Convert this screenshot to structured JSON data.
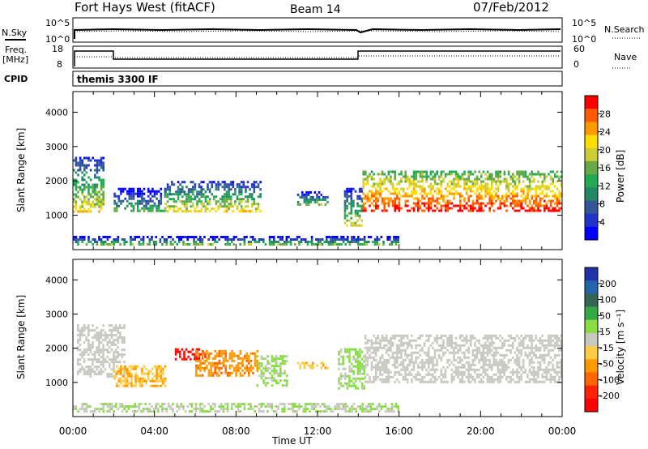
{
  "header": {
    "site": "Fort Hays West (fitACF)",
    "beam": "Beam 14",
    "date": "07/Feb/2012"
  },
  "strips": {
    "nsky_label": "N.Sky",
    "nsearch_label": "N.Search",
    "freq_label_line1": "Freq.",
    "freq_label_line2": "[MHz]",
    "nave_label": "Nave",
    "cpid_label": "CPID",
    "noise_ticks": [
      "10^5",
      "10^0"
    ],
    "freq_ticks": [
      "18",
      "8"
    ],
    "nave_ticks": [
      "60",
      "0"
    ],
    "program": "themis 3300 IF"
  },
  "axes": {
    "ylabel": "Slant Range [km]",
    "xlabel": "Time UT",
    "y_ticks": [
      "4000",
      "3000",
      "2000",
      "1000"
    ],
    "x_ticks": [
      "00:00",
      "04:00",
      "08:00",
      "12:00",
      "16:00",
      "20:00",
      "00:00"
    ]
  },
  "power_scale": {
    "label": "Power [dB]",
    "ticks": [
      "28",
      "24",
      "20",
      "16",
      "12",
      "8",
      "4"
    ],
    "colors": [
      "#ff0000",
      "#ff5a00",
      "#ff9900",
      "#ffdd00",
      "#cccc33",
      "#66aa44",
      "#22aa55",
      "#228866",
      "#335599",
      "#2233cc",
      "#0000ff"
    ]
  },
  "velocity_scale": {
    "label": "Velocity [m s⁻¹]",
    "ticks": [
      "200",
      "100",
      "50",
      "15",
      "-15",
      "-50",
      "-100",
      "-200"
    ],
    "colors": [
      "#2233aa",
      "#2266aa",
      "#336655",
      "#33aa44",
      "#88dd44",
      "#c8c8c0",
      "#ffcc44",
      "#ff9900",
      "#ff6600",
      "#ff2200",
      "#ff0000"
    ]
  },
  "chart_data": [
    {
      "type": "heatmap",
      "panel": "power",
      "xlabel": "Time UT",
      "ylabel": "Slant Range [km]",
      "xlim_hours": [
        0,
        24
      ],
      "ylim_km": [
        0,
        4600
      ],
      "colorbar": "Power [dB]",
      "regions": [
        {
          "t": [
            0.0,
            1.5
          ],
          "range": [
            1100,
            2700
          ],
          "value_db": 12
        },
        {
          "t": [
            2.0,
            4.5
          ],
          "range": [
            1100,
            1800
          ],
          "value_db": 6
        },
        {
          "t": [
            4.5,
            9.2
          ],
          "range": [
            1100,
            2000
          ],
          "value_db": 12
        },
        {
          "t": [
            11.0,
            12.5
          ],
          "range": [
            1300,
            1700
          ],
          "value_db": 8
        },
        {
          "t": [
            13.3,
            14.2
          ],
          "range": [
            700,
            1800
          ],
          "value_db": 10
        },
        {
          "t": [
            14.2,
            24.0
          ],
          "range": [
            1100,
            2300
          ],
          "value_db": 22
        },
        {
          "t": [
            0.0,
            16.0
          ],
          "range": [
            150,
            400
          ],
          "value_db": 8
        }
      ]
    },
    {
      "type": "heatmap",
      "panel": "velocity",
      "xlabel": "Time UT",
      "ylabel": "Slant Range [km]",
      "xlim_hours": [
        0,
        24
      ],
      "ylim_km": [
        0,
        4600
      ],
      "colorbar": "Velocity [m s⁻¹]",
      "regions": [
        {
          "t": [
            0.2,
            2.5
          ],
          "range": [
            1200,
            2700
          ],
          "value_ms": 0
        },
        {
          "t": [
            2.0,
            4.5
          ],
          "range": [
            900,
            1500
          ],
          "value_ms": -60
        },
        {
          "t": [
            5.0,
            6.5
          ],
          "range": [
            1700,
            2000
          ],
          "value_ms": -200
        },
        {
          "t": [
            6.0,
            9.0
          ],
          "range": [
            1200,
            1950
          ],
          "value_ms": -100
        },
        {
          "t": [
            9.0,
            10.5
          ],
          "range": [
            900,
            1800
          ],
          "value_ms": 30
        },
        {
          "t": [
            11.0,
            12.5
          ],
          "range": [
            1400,
            1600
          ],
          "value_ms": -50
        },
        {
          "t": [
            13.0,
            14.3
          ],
          "range": [
            800,
            2000
          ],
          "value_ms": 30
        },
        {
          "t": [
            14.3,
            24.0
          ],
          "range": [
            1000,
            2400
          ],
          "value_ms": 0
        },
        {
          "t": [
            0.0,
            16.0
          ],
          "range": [
            150,
            400
          ],
          "value_ms": 20
        }
      ]
    }
  ]
}
